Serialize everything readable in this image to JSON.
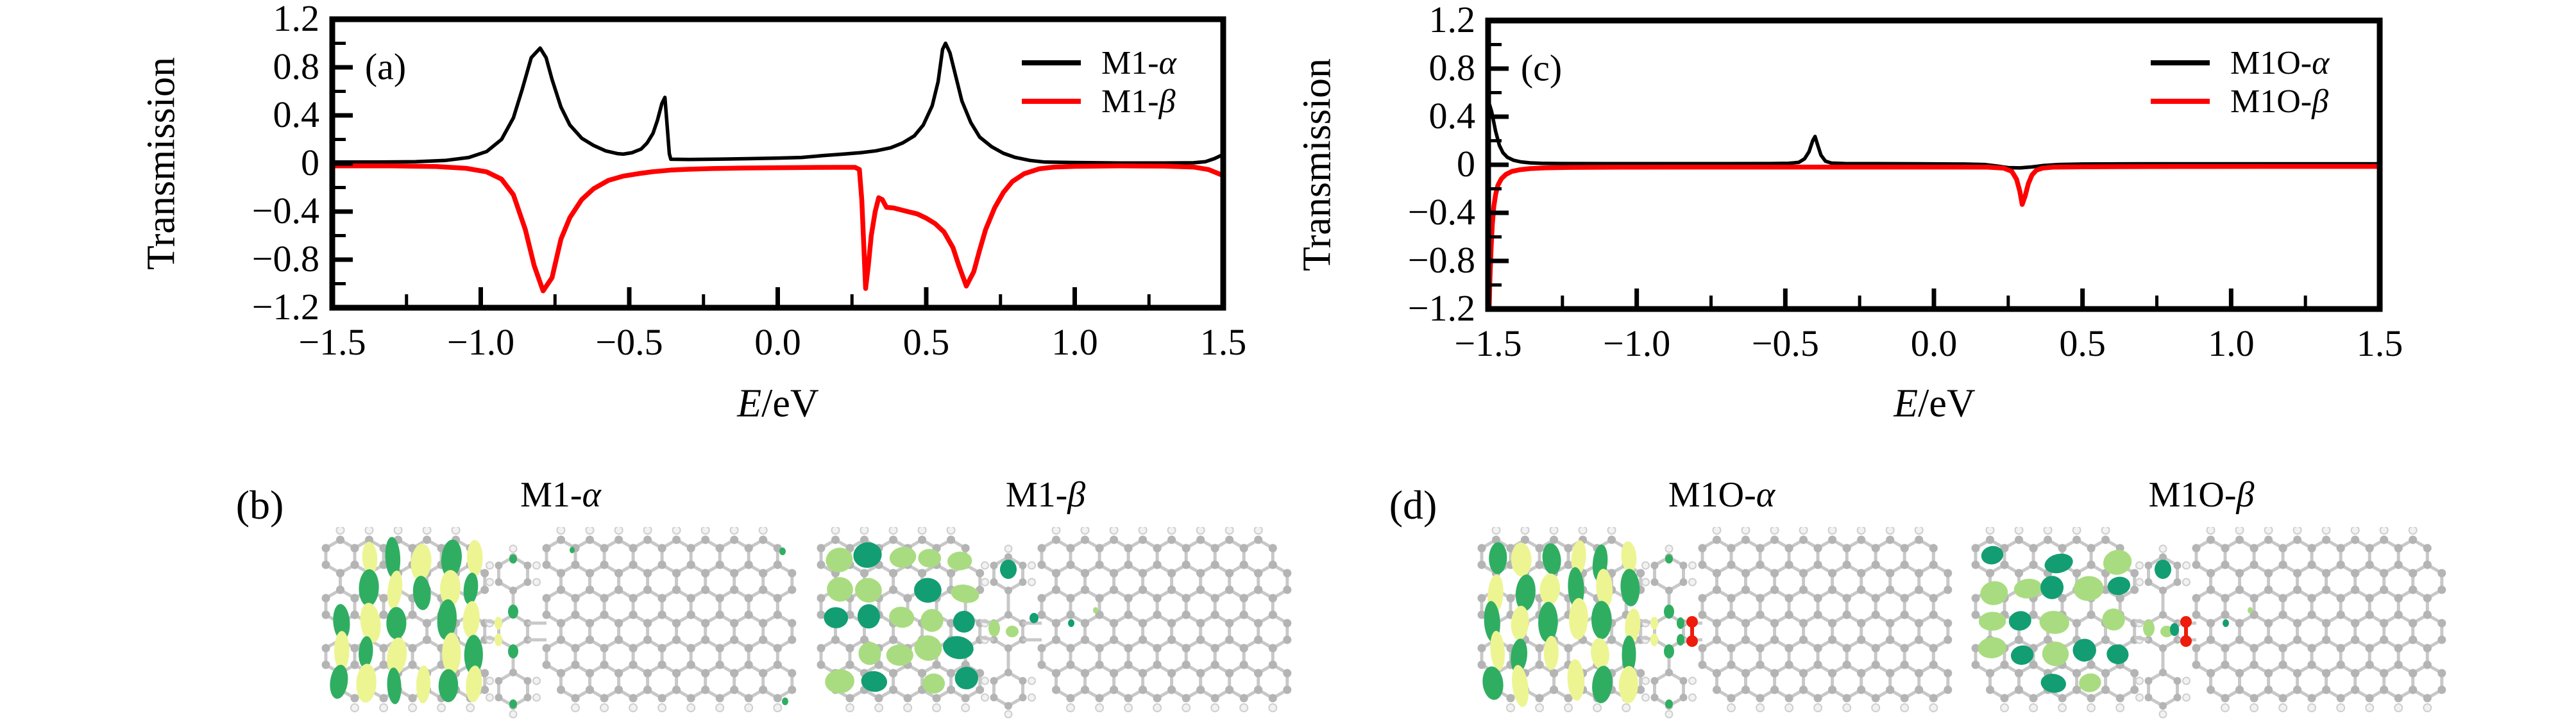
{
  "figure": {
    "background": "#ffffff"
  },
  "colors": {
    "frame": "#000000",
    "series_alpha": "#000000",
    "series_beta": "#ff0000",
    "lobes": {
      "alpha_dark": "#2fae62",
      "alpha_light": "#edf593",
      "beta_dark": "#129e72",
      "beta_light": "#a9dc80"
    },
    "atoms": {
      "carbon": "#b4b4b4",
      "bond": "#c8c8c8",
      "hydrogen": "#f2f2f2",
      "hydrogen_stroke": "#cfcfcf",
      "oxygen": "#ee1c0c"
    }
  },
  "chart_data": [
    {
      "id": "a",
      "type": "line",
      "panel_label": "(a)",
      "ylabel": "Transmission",
      "xlabel_italic": "E",
      "xlabel_rest": "/eV",
      "xlim": [
        -1.5,
        1.5
      ],
      "ylim": [
        -1.2,
        1.2
      ],
      "grid": false,
      "legend_position": "upper right",
      "x_ticks": [
        -1.5,
        -1.0,
        -0.5,
        0.0,
        0.5,
        1.0,
        1.5
      ],
      "x_tick_labels": [
        "−1.5",
        "−1.0",
        "−0.5",
        "0.0",
        "0.5",
        "1.0",
        "1.5"
      ],
      "x_minor_step": 0.25,
      "y_ticks": [
        1.2,
        0.8,
        0.4,
        0,
        -0.4,
        -0.8,
        -1.2
      ],
      "y_tick_labels": [
        "1.2",
        "0.8",
        "0.4",
        "0",
        "−0.4",
        "−0.8",
        "−1.2"
      ],
      "y_minor_step": 0.2,
      "legend": [
        {
          "label_prefix": "M1-",
          "label_greek": "α",
          "color": "#000000"
        },
        {
          "label_prefix": "M1-",
          "label_greek": "β",
          "color": "#ff0000"
        }
      ],
      "series": [
        {
          "name": "M1-alpha",
          "color": "#000000",
          "width": 5.5,
          "points": [
            [
              -1.5,
              0.012
            ],
            [
              -1.35,
              0.012
            ],
            [
              -1.22,
              0.015
            ],
            [
              -1.12,
              0.025
            ],
            [
              -1.04,
              0.05
            ],
            [
              -0.98,
              0.1
            ],
            [
              -0.93,
              0.2
            ],
            [
              -0.89,
              0.38
            ],
            [
              -0.86,
              0.62
            ],
            [
              -0.83,
              0.88
            ],
            [
              -0.8,
              0.96
            ],
            [
              -0.78,
              0.88
            ],
            [
              -0.76,
              0.7
            ],
            [
              -0.73,
              0.47
            ],
            [
              -0.7,
              0.32
            ],
            [
              -0.66,
              0.21
            ],
            [
              -0.62,
              0.15
            ],
            [
              -0.58,
              0.105
            ],
            [
              -0.54,
              0.082
            ],
            [
              -0.52,
              0.078
            ],
            [
              -0.49,
              0.09
            ],
            [
              -0.46,
              0.12
            ],
            [
              -0.44,
              0.17
            ],
            [
              -0.42,
              0.25
            ],
            [
              -0.405,
              0.36
            ],
            [
              -0.39,
              0.5
            ],
            [
              -0.38,
              0.55
            ],
            [
              -0.372,
              0.3
            ],
            [
              -0.365,
              0.08
            ],
            [
              -0.36,
              0.035
            ],
            [
              -0.3,
              0.033
            ],
            [
              -0.2,
              0.036
            ],
            [
              -0.1,
              0.04
            ],
            [
              0.0,
              0.045
            ],
            [
              0.08,
              0.05
            ],
            [
              0.15,
              0.065
            ],
            [
              0.22,
              0.078
            ],
            [
              0.28,
              0.09
            ],
            [
              0.33,
              0.105
            ],
            [
              0.38,
              0.13
            ],
            [
              0.42,
              0.17
            ],
            [
              0.46,
              0.23
            ],
            [
              0.49,
              0.32
            ],
            [
              0.52,
              0.48
            ],
            [
              0.54,
              0.68
            ],
            [
              0.555,
              0.95
            ],
            [
              0.565,
              1.0
            ],
            [
              0.58,
              0.92
            ],
            [
              0.6,
              0.72
            ],
            [
              0.62,
              0.52
            ],
            [
              0.65,
              0.34
            ],
            [
              0.68,
              0.22
            ],
            [
              0.72,
              0.14
            ],
            [
              0.76,
              0.085
            ],
            [
              0.8,
              0.05
            ],
            [
              0.85,
              0.025
            ],
            [
              0.9,
              0.012
            ],
            [
              1.0,
              0.008
            ],
            [
              1.15,
              0.004
            ],
            [
              1.3,
              0.004
            ],
            [
              1.4,
              0.006
            ],
            [
              1.44,
              0.015
            ],
            [
              1.47,
              0.04
            ],
            [
              1.5,
              0.075
            ]
          ]
        },
        {
          "name": "M1-beta",
          "color": "#ff0000",
          "width": 7.5,
          "points": [
            [
              -1.5,
              -0.02
            ],
            [
              -1.3,
              -0.02
            ],
            [
              -1.15,
              -0.025
            ],
            [
              -1.05,
              -0.04
            ],
            [
              -0.98,
              -0.07
            ],
            [
              -0.93,
              -0.13
            ],
            [
              -0.89,
              -0.26
            ],
            [
              -0.85,
              -0.55
            ],
            [
              -0.82,
              -0.85
            ],
            [
              -0.79,
              -1.06
            ],
            [
              -0.76,
              -0.95
            ],
            [
              -0.73,
              -0.63
            ],
            [
              -0.7,
              -0.45
            ],
            [
              -0.66,
              -0.3
            ],
            [
              -0.62,
              -0.21
            ],
            [
              -0.57,
              -0.14
            ],
            [
              -0.52,
              -0.105
            ],
            [
              -0.47,
              -0.085
            ],
            [
              -0.42,
              -0.068
            ],
            [
              -0.36,
              -0.055
            ],
            [
              -0.3,
              -0.048
            ],
            [
              -0.22,
              -0.042
            ],
            [
              -0.12,
              -0.038
            ],
            [
              0.0,
              -0.035
            ],
            [
              0.1,
              -0.033
            ],
            [
              0.2,
              -0.032
            ],
            [
              0.26,
              -0.032
            ],
            [
              0.275,
              -0.05
            ],
            [
              0.283,
              -0.3
            ],
            [
              0.29,
              -0.7
            ],
            [
              0.296,
              -1.04
            ],
            [
              0.305,
              -0.85
            ],
            [
              0.315,
              -0.6
            ],
            [
              0.328,
              -0.4
            ],
            [
              0.34,
              -0.285
            ],
            [
              0.352,
              -0.3
            ],
            [
              0.366,
              -0.365
            ],
            [
              0.39,
              -0.37
            ],
            [
              0.43,
              -0.395
            ],
            [
              0.47,
              -0.42
            ],
            [
              0.5,
              -0.455
            ],
            [
              0.53,
              -0.5
            ],
            [
              0.56,
              -0.57
            ],
            [
              0.59,
              -0.7
            ],
            [
              0.61,
              -0.85
            ],
            [
              0.635,
              -1.02
            ],
            [
              0.66,
              -0.9
            ],
            [
              0.68,
              -0.72
            ],
            [
              0.7,
              -0.55
            ],
            [
              0.73,
              -0.37
            ],
            [
              0.76,
              -0.24
            ],
            [
              0.79,
              -0.15
            ],
            [
              0.83,
              -0.085
            ],
            [
              0.88,
              -0.045
            ],
            [
              0.93,
              -0.03
            ],
            [
              1.0,
              -0.024
            ],
            [
              1.15,
              -0.02
            ],
            [
              1.3,
              -0.022
            ],
            [
              1.4,
              -0.03
            ],
            [
              1.45,
              -0.05
            ],
            [
              1.5,
              -0.1
            ]
          ]
        }
      ]
    },
    {
      "id": "c",
      "type": "line",
      "panel_label": "(c)",
      "ylabel": "Transmission",
      "xlabel_italic": "E",
      "xlabel_rest": "/eV",
      "xlim": [
        -1.5,
        1.5
      ],
      "ylim": [
        -1.2,
        1.2
      ],
      "grid": false,
      "legend_position": "upper right",
      "x_ticks": [
        -1.5,
        -1.0,
        -0.5,
        0.0,
        0.5,
        1.0,
        1.5
      ],
      "x_tick_labels": [
        "−1.5",
        "−1.0",
        "−0.5",
        "0.0",
        "0.5",
        "1.0",
        "1.5"
      ],
      "x_minor_step": 0.25,
      "y_ticks": [
        1.2,
        0.8,
        0.4,
        0,
        -0.4,
        -0.8,
        -1.2
      ],
      "y_tick_labels": [
        "1.2",
        "0.8",
        "0.4",
        "0",
        "−0.4",
        "−0.8",
        "−1.2"
      ],
      "y_minor_step": 0.2,
      "legend": [
        {
          "label_prefix": "M1O-",
          "label_greek": "α",
          "color": "#000000"
        },
        {
          "label_prefix": "M1O-",
          "label_greek": "β",
          "color": "#ff0000"
        }
      ],
      "series": [
        {
          "name": "M1O-alpha",
          "color": "#000000",
          "width": 5.5,
          "points": [
            [
              -1.5,
              0.54
            ],
            [
              -1.488,
              0.44
            ],
            [
              -1.475,
              0.28
            ],
            [
              -1.462,
              0.16
            ],
            [
              -1.45,
              0.1
            ],
            [
              -1.435,
              0.062
            ],
            [
              -1.415,
              0.038
            ],
            [
              -1.39,
              0.024
            ],
            [
              -1.36,
              0.016
            ],
            [
              -1.32,
              0.012
            ],
            [
              -1.25,
              0.01
            ],
            [
              -1.1,
              0.009
            ],
            [
              -0.9,
              0.009
            ],
            [
              -0.7,
              0.009
            ],
            [
              -0.55,
              0.01
            ],
            [
              -0.49,
              0.012
            ],
            [
              -0.455,
              0.02
            ],
            [
              -0.435,
              0.05
            ],
            [
              -0.42,
              0.11
            ],
            [
              -0.408,
              0.2
            ],
            [
              -0.4,
              0.235
            ],
            [
              -0.392,
              0.17
            ],
            [
              -0.38,
              0.08
            ],
            [
              -0.365,
              0.03
            ],
            [
              -0.345,
              0.014
            ],
            [
              -0.3,
              0.01
            ],
            [
              -0.2,
              0.009
            ],
            [
              -0.05,
              0.008
            ],
            [
              0.1,
              0.006
            ],
            [
              0.17,
              0.002
            ],
            [
              0.21,
              -0.01
            ],
            [
              0.25,
              -0.024
            ],
            [
              0.29,
              -0.026
            ],
            [
              0.33,
              -0.018
            ],
            [
              0.37,
              -0.006
            ],
            [
              0.42,
              0.002
            ],
            [
              0.5,
              0.006
            ],
            [
              0.7,
              0.008
            ],
            [
              1.0,
              0.008
            ],
            [
              1.25,
              0.008
            ],
            [
              1.5,
              0.008
            ]
          ]
        },
        {
          "name": "M1O-beta",
          "color": "#ff0000",
          "width": 7.5,
          "points": [
            [
              -1.497,
              -1.25
            ],
            [
              -1.494,
              -0.95
            ],
            [
              -1.49,
              -0.7
            ],
            [
              -1.486,
              -0.5
            ],
            [
              -1.481,
              -0.35
            ],
            [
              -1.475,
              -0.25
            ],
            [
              -1.467,
              -0.17
            ],
            [
              -1.455,
              -0.115
            ],
            [
              -1.44,
              -0.08
            ],
            [
              -1.42,
              -0.055
            ],
            [
              -1.395,
              -0.042
            ],
            [
              -1.36,
              -0.032
            ],
            [
              -1.31,
              -0.026
            ],
            [
              -1.22,
              -0.022
            ],
            [
              -1.05,
              -0.02
            ],
            [
              -0.8,
              -0.019
            ],
            [
              -0.5,
              -0.019
            ],
            [
              -0.2,
              -0.019
            ],
            [
              0.05,
              -0.019
            ],
            [
              0.18,
              -0.02
            ],
            [
              0.235,
              -0.028
            ],
            [
              0.262,
              -0.055
            ],
            [
              0.278,
              -0.12
            ],
            [
              0.289,
              -0.22
            ],
            [
              0.297,
              -0.33
            ],
            [
              0.307,
              -0.26
            ],
            [
              0.318,
              -0.155
            ],
            [
              0.33,
              -0.085
            ],
            [
              0.345,
              -0.045
            ],
            [
              0.365,
              -0.028
            ],
            [
              0.4,
              -0.02
            ],
            [
              0.5,
              -0.017
            ],
            [
              0.8,
              -0.015
            ],
            [
              1.1,
              -0.014
            ],
            [
              1.5,
              -0.014
            ]
          ]
        }
      ]
    }
  ],
  "molecular_panels": [
    {
      "id": "b",
      "panel_label": "(b)",
      "items": [
        {
          "title_prefix": "M1-",
          "title_greek": "α",
          "lobe_style": "alpha",
          "oxygen": false
        },
        {
          "title_prefix": "M1-",
          "title_greek": "β",
          "lobe_style": "beta",
          "oxygen": false
        }
      ]
    },
    {
      "id": "d",
      "panel_label": "(d)",
      "items": [
        {
          "title_prefix": "M1O-",
          "title_greek": "α",
          "lobe_style": "alpha",
          "oxygen": true
        },
        {
          "title_prefix": "M1O-",
          "title_greek": "β",
          "lobe_style": "beta",
          "oxygen": true
        }
      ]
    }
  ]
}
